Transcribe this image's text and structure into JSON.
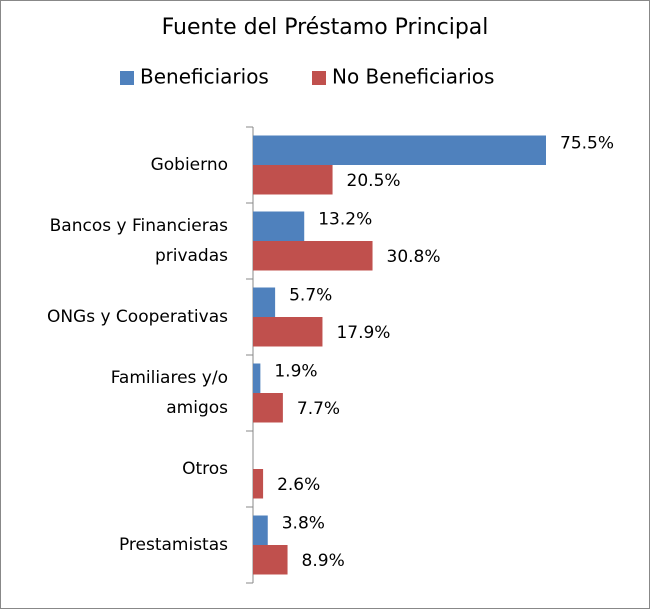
{
  "chart_data": {
    "type": "hbar",
    "title": "Fuente del Préstamo Principal",
    "categories": [
      "Gobierno",
      "Bancos y Financieras\nprivadas",
      "ONGs y Cooperativas",
      "Familiares y/o\namigos",
      "Otros",
      "Prestamistas"
    ],
    "series": [
      {
        "name": "Beneficiarios",
        "color": "#4f81bd",
        "values": [
          75.5,
          13.2,
          5.7,
          1.9,
          null,
          3.8
        ],
        "value_labels": [
          "75.5%",
          "13.2%",
          "5.7%",
          "1.9%",
          null,
          "3.8%"
        ]
      },
      {
        "name": "No Beneficiarios",
        "color": "#c0504d",
        "values": [
          20.5,
          30.8,
          17.9,
          7.7,
          2.6,
          8.9
        ],
        "value_labels": [
          "20.5%",
          "30.8%",
          "17.9%",
          "7.7%",
          "2.6%",
          "8.9%"
        ]
      }
    ],
    "legend": "top"
  }
}
